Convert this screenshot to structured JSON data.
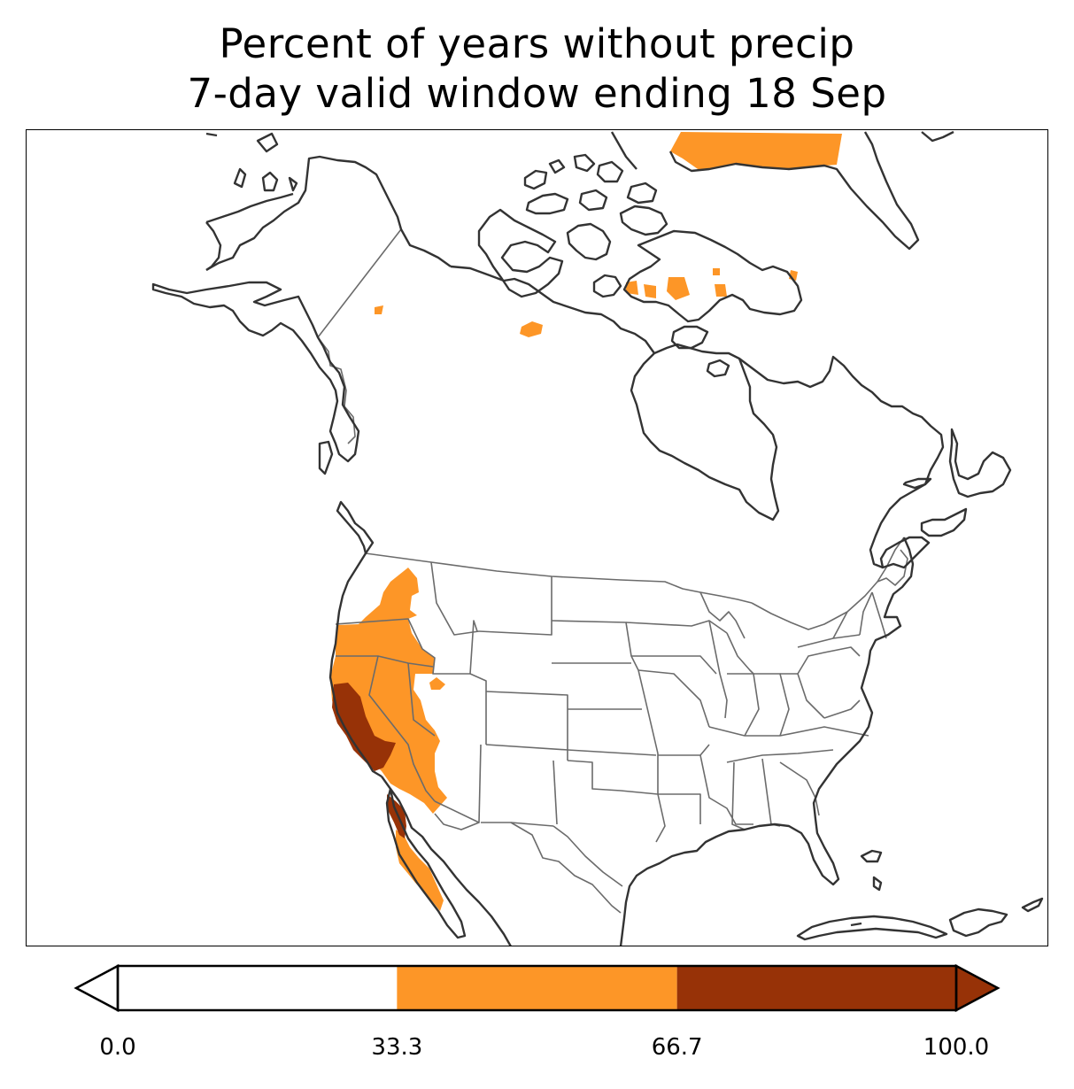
{
  "title": {
    "line1": "Percent of years without precip",
    "line2": "7-day valid window ending 18 Sep"
  },
  "colorbar": {
    "ticks": [
      "0.0",
      "33.3",
      "66.7",
      "100.0"
    ],
    "bins": [
      {
        "from": 0.0,
        "to": 33.3,
        "color": "#ffffff"
      },
      {
        "from": 33.3,
        "to": 66.7,
        "color": "#fd9627"
      },
      {
        "from": 66.7,
        "to": 100.0,
        "color": "#973207"
      }
    ],
    "extend": "both"
  },
  "colors": {
    "coast": "#333333",
    "borders": "#6b6b6b",
    "mid": "#fd9627",
    "high": "#973207"
  }
}
